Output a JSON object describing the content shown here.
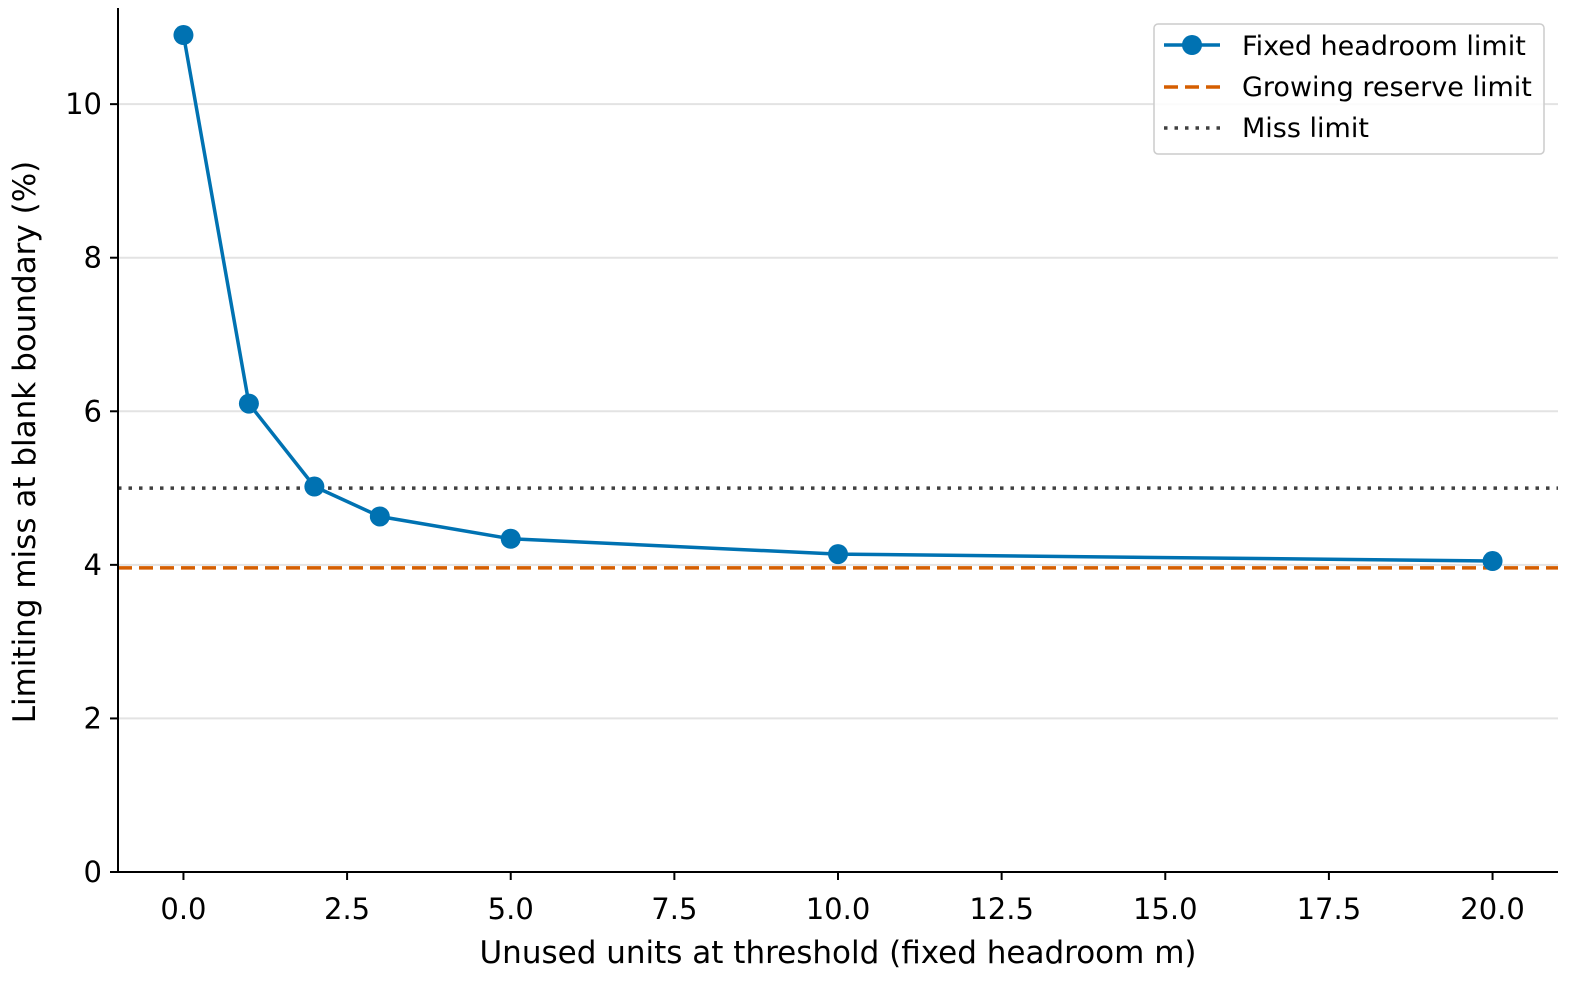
{
  "chart_data": {
    "type": "line",
    "title": "",
    "xlabel": "Unused units at threshold (fixed headroom m)",
    "ylabel": "Limiting miss at blank boundary (%)",
    "xlim": [
      -1,
      21
    ],
    "ylim": [
      0,
      11.2
    ],
    "x_ticks": [
      0.0,
      2.5,
      5.0,
      7.5,
      10.0,
      12.5,
      15.0,
      17.5,
      20.0
    ],
    "x_tick_labels": [
      "0.0",
      "2.5",
      "5.0",
      "7.5",
      "10.0",
      "12.5",
      "15.0",
      "17.5",
      "20.0"
    ],
    "y_ticks": [
      0,
      2,
      4,
      6,
      8,
      10
    ],
    "y_tick_labels": [
      "0",
      "2",
      "4",
      "6",
      "8",
      "10"
    ],
    "grid": "horizontal",
    "legend_position": "top-right",
    "series": [
      {
        "name": "Fixed headroom limit",
        "style": "solid-line-with-markers",
        "color": "#0072B2",
        "x": [
          0,
          1,
          2,
          3,
          5,
          10,
          20
        ],
        "y": [
          10.9,
          6.1,
          5.02,
          4.63,
          4.34,
          4.14,
          4.05
        ]
      },
      {
        "name": "Growing reserve limit",
        "style": "dashed-horizontal",
        "color": "#D55E00",
        "y": 3.96
      },
      {
        "name": "Miss limit",
        "style": "dotted-horizontal",
        "color": "#404040",
        "y": 5.0
      }
    ]
  }
}
